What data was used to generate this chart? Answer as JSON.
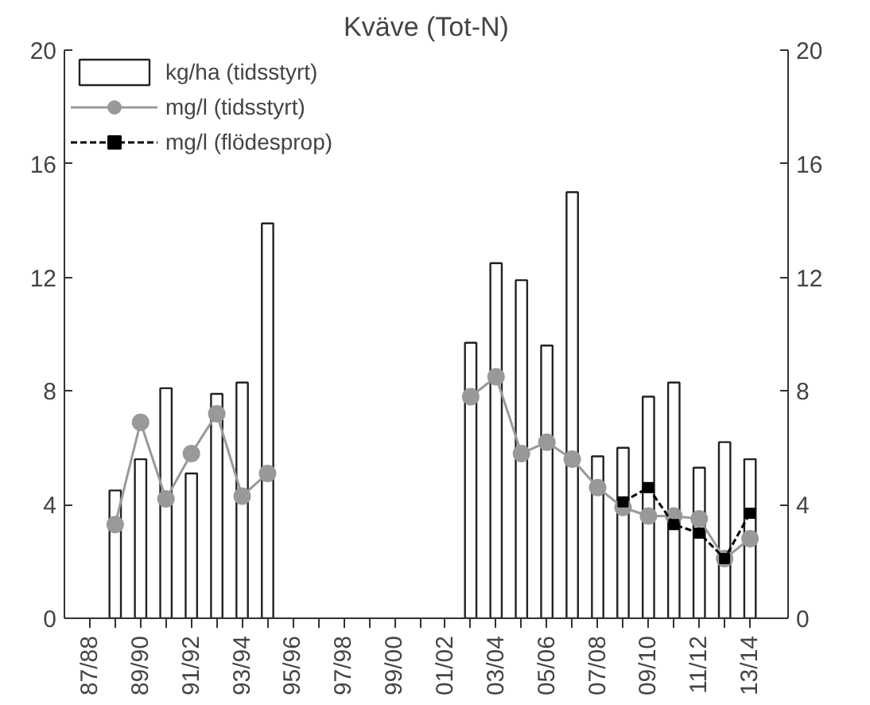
{
  "chart_data": {
    "type": "bar",
    "title": "Kväve (Tot-N)",
    "categories": [
      "87/88",
      null,
      "89/90",
      null,
      "91/92",
      null,
      "93/94",
      null,
      "95/96",
      null,
      "97/98",
      null,
      "99/00",
      null,
      "01/02",
      null,
      "03/04",
      null,
      "05/06",
      null,
      "07/08",
      null,
      "09/10",
      null,
      "11/12",
      null,
      "13/14"
    ],
    "series": [
      {
        "name": "kg/ha (tidsstyrt)",
        "color": "#ffffff",
        "values": [
          null,
          4.5,
          5.6,
          8.1,
          5.1,
          7.9,
          8.3,
          13.9,
          null,
          null,
          null,
          null,
          null,
          null,
          null,
          9.7,
          12.5,
          11.9,
          9.6,
          15.0,
          5.7,
          6.0,
          7.8,
          8.3,
          5.3,
          6.2,
          5.6
        ]
      },
      {
        "name": "mg/l (tidsstyrt)",
        "type": "line",
        "color": "#999999",
        "marker": "circle",
        "line_style": "solid",
        "values": [
          null,
          3.3,
          6.9,
          4.2,
          5.8,
          7.2,
          4.3,
          5.1,
          null,
          null,
          null,
          null,
          null,
          null,
          null,
          7.8,
          8.5,
          5.8,
          6.2,
          5.6,
          4.6,
          3.9,
          3.6,
          3.6,
          3.5,
          2.1,
          2.8
        ]
      },
      {
        "name": "mg/l (flödesprop)",
        "type": "line",
        "color": "#000000",
        "marker": "square",
        "line_style": "dashed",
        "values": [
          null,
          null,
          null,
          null,
          null,
          null,
          null,
          null,
          null,
          null,
          null,
          null,
          null,
          null,
          null,
          null,
          null,
          null,
          null,
          null,
          null,
          4.1,
          4.6,
          3.3,
          3.0,
          2.1,
          3.7
        ]
      }
    ],
    "ylim": [
      0,
      20
    ],
    "yticks": [
      0,
      4,
      8,
      12,
      16,
      20
    ],
    "y2lim": [
      0,
      20
    ],
    "y2ticks": [
      0,
      4,
      8,
      12,
      16,
      20
    ],
    "grid": false,
    "legend": "top left"
  }
}
